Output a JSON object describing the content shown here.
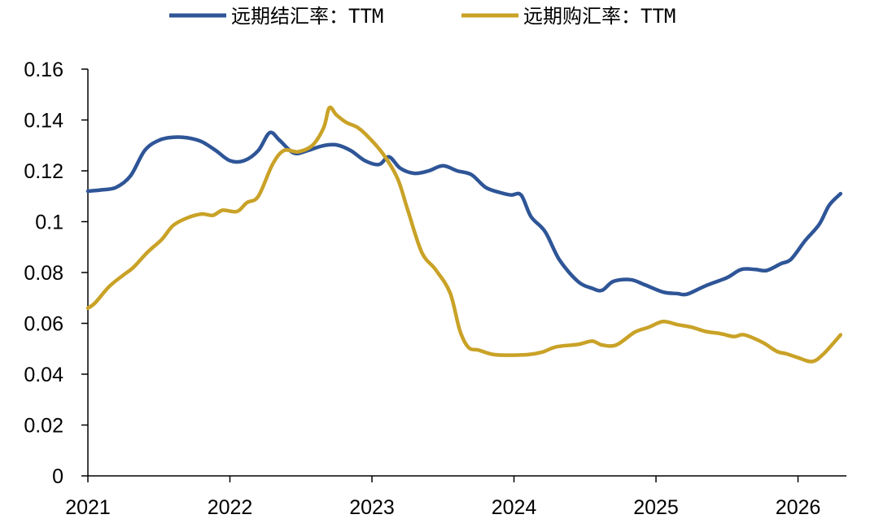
{
  "chart_data": {
    "type": "line",
    "xlabel": "",
    "ylabel": "",
    "xlim": [
      2021.0,
      2026.3
    ],
    "ylim": [
      0,
      0.16
    ],
    "x_ticks": [
      "2021",
      "2022",
      "2023",
      "2024",
      "2025",
      "2026"
    ],
    "y_ticks": [
      "0",
      "0.02",
      "0.04",
      "0.06",
      "0.08",
      "0.1",
      "0.12",
      "0.14",
      "0.16"
    ],
    "legend_position": "top",
    "series": [
      {
        "name": "远期结汇率：TTM",
        "color": "#2E5597",
        "points": [
          [
            2021.0,
            0.112
          ],
          [
            2021.1,
            0.1125
          ],
          [
            2021.2,
            0.1135
          ],
          [
            2021.3,
            0.118
          ],
          [
            2021.4,
            0.128
          ],
          [
            2021.5,
            0.132
          ],
          [
            2021.6,
            0.1332
          ],
          [
            2021.7,
            0.133
          ],
          [
            2021.8,
            0.1315
          ],
          [
            2021.9,
            0.128
          ],
          [
            2022.0,
            0.124
          ],
          [
            2022.1,
            0.124
          ],
          [
            2022.2,
            0.128
          ],
          [
            2022.28,
            0.135
          ],
          [
            2022.35,
            0.132
          ],
          [
            2022.45,
            0.127
          ],
          [
            2022.55,
            0.128
          ],
          [
            2022.65,
            0.1298
          ],
          [
            2022.75,
            0.1302
          ],
          [
            2022.85,
            0.128
          ],
          [
            2022.95,
            0.124
          ],
          [
            2023.05,
            0.1225
          ],
          [
            2023.12,
            0.1255
          ],
          [
            2023.2,
            0.121
          ],
          [
            2023.3,
            0.119
          ],
          [
            2023.4,
            0.12
          ],
          [
            2023.5,
            0.122
          ],
          [
            2023.6,
            0.12
          ],
          [
            2023.7,
            0.1185
          ],
          [
            2023.8,
            0.1135
          ],
          [
            2023.9,
            0.1115
          ],
          [
            2023.98,
            0.1105
          ],
          [
            2024.05,
            0.1105
          ],
          [
            2024.12,
            0.102
          ],
          [
            2024.22,
            0.096
          ],
          [
            2024.32,
            0.085
          ],
          [
            2024.45,
            0.0765
          ],
          [
            2024.55,
            0.0738
          ],
          [
            2024.62,
            0.073
          ],
          [
            2024.7,
            0.0765
          ],
          [
            2024.82,
            0.0772
          ],
          [
            2024.92,
            0.0752
          ],
          [
            2025.05,
            0.0723
          ],
          [
            2025.15,
            0.0717
          ],
          [
            2025.22,
            0.0715
          ],
          [
            2025.35,
            0.0748
          ],
          [
            2025.5,
            0.078
          ],
          [
            2025.6,
            0.0812
          ],
          [
            2025.7,
            0.0812
          ],
          [
            2025.78,
            0.0808
          ],
          [
            2025.88,
            0.0835
          ],
          [
            2025.95,
            0.0852
          ],
          [
            2026.05,
            0.0925
          ],
          [
            2026.15,
            0.099
          ],
          [
            2026.22,
            0.1065
          ],
          [
            2026.3,
            0.111
          ]
        ]
      },
      {
        "name": "远期购汇率：TTM",
        "color": "#C9A227",
        "points": [
          [
            2021.0,
            0.066
          ],
          [
            2021.05,
            0.068
          ],
          [
            2021.15,
            0.0745
          ],
          [
            2021.25,
            0.079
          ],
          [
            2021.32,
            0.082
          ],
          [
            2021.42,
            0.088
          ],
          [
            2021.52,
            0.093
          ],
          [
            2021.6,
            0.0985
          ],
          [
            2021.7,
            0.1015
          ],
          [
            2021.8,
            0.103
          ],
          [
            2021.88,
            0.1025
          ],
          [
            2021.95,
            0.1045
          ],
          [
            2022.05,
            0.104
          ],
          [
            2022.12,
            0.1075
          ],
          [
            2022.2,
            0.11
          ],
          [
            2022.3,
            0.1225
          ],
          [
            2022.38,
            0.128
          ],
          [
            2022.48,
            0.1275
          ],
          [
            2022.58,
            0.13
          ],
          [
            2022.66,
            0.137
          ],
          [
            2022.7,
            0.1448
          ],
          [
            2022.75,
            0.142
          ],
          [
            2022.82,
            0.139
          ],
          [
            2022.9,
            0.137
          ],
          [
            2022.98,
            0.133
          ],
          [
            2023.08,
            0.1265
          ],
          [
            2023.18,
            0.117
          ],
          [
            2023.25,
            0.105
          ],
          [
            2023.35,
            0.088
          ],
          [
            2023.45,
            0.081
          ],
          [
            2023.55,
            0.072
          ],
          [
            2023.62,
            0.057
          ],
          [
            2023.68,
            0.0505
          ],
          [
            2023.75,
            0.0495
          ],
          [
            2023.85,
            0.0478
          ],
          [
            2023.95,
            0.0475
          ],
          [
            2024.1,
            0.0477
          ],
          [
            2024.2,
            0.0487
          ],
          [
            2024.3,
            0.0508
          ],
          [
            2024.45,
            0.0517
          ],
          [
            2024.55,
            0.053
          ],
          [
            2024.62,
            0.0515
          ],
          [
            2024.72,
            0.0515
          ],
          [
            2024.85,
            0.0565
          ],
          [
            2024.95,
            0.0585
          ],
          [
            2025.05,
            0.0607
          ],
          [
            2025.15,
            0.0595
          ],
          [
            2025.25,
            0.0585
          ],
          [
            2025.35,
            0.0568
          ],
          [
            2025.45,
            0.056
          ],
          [
            2025.55,
            0.0548
          ],
          [
            2025.62,
            0.0555
          ],
          [
            2025.75,
            0.0525
          ],
          [
            2025.85,
            0.049
          ],
          [
            2025.92,
            0.048
          ],
          [
            2026.0,
            0.0465
          ],
          [
            2026.1,
            0.045
          ],
          [
            2026.18,
            0.048
          ],
          [
            2026.3,
            0.0555
          ]
        ]
      }
    ]
  }
}
